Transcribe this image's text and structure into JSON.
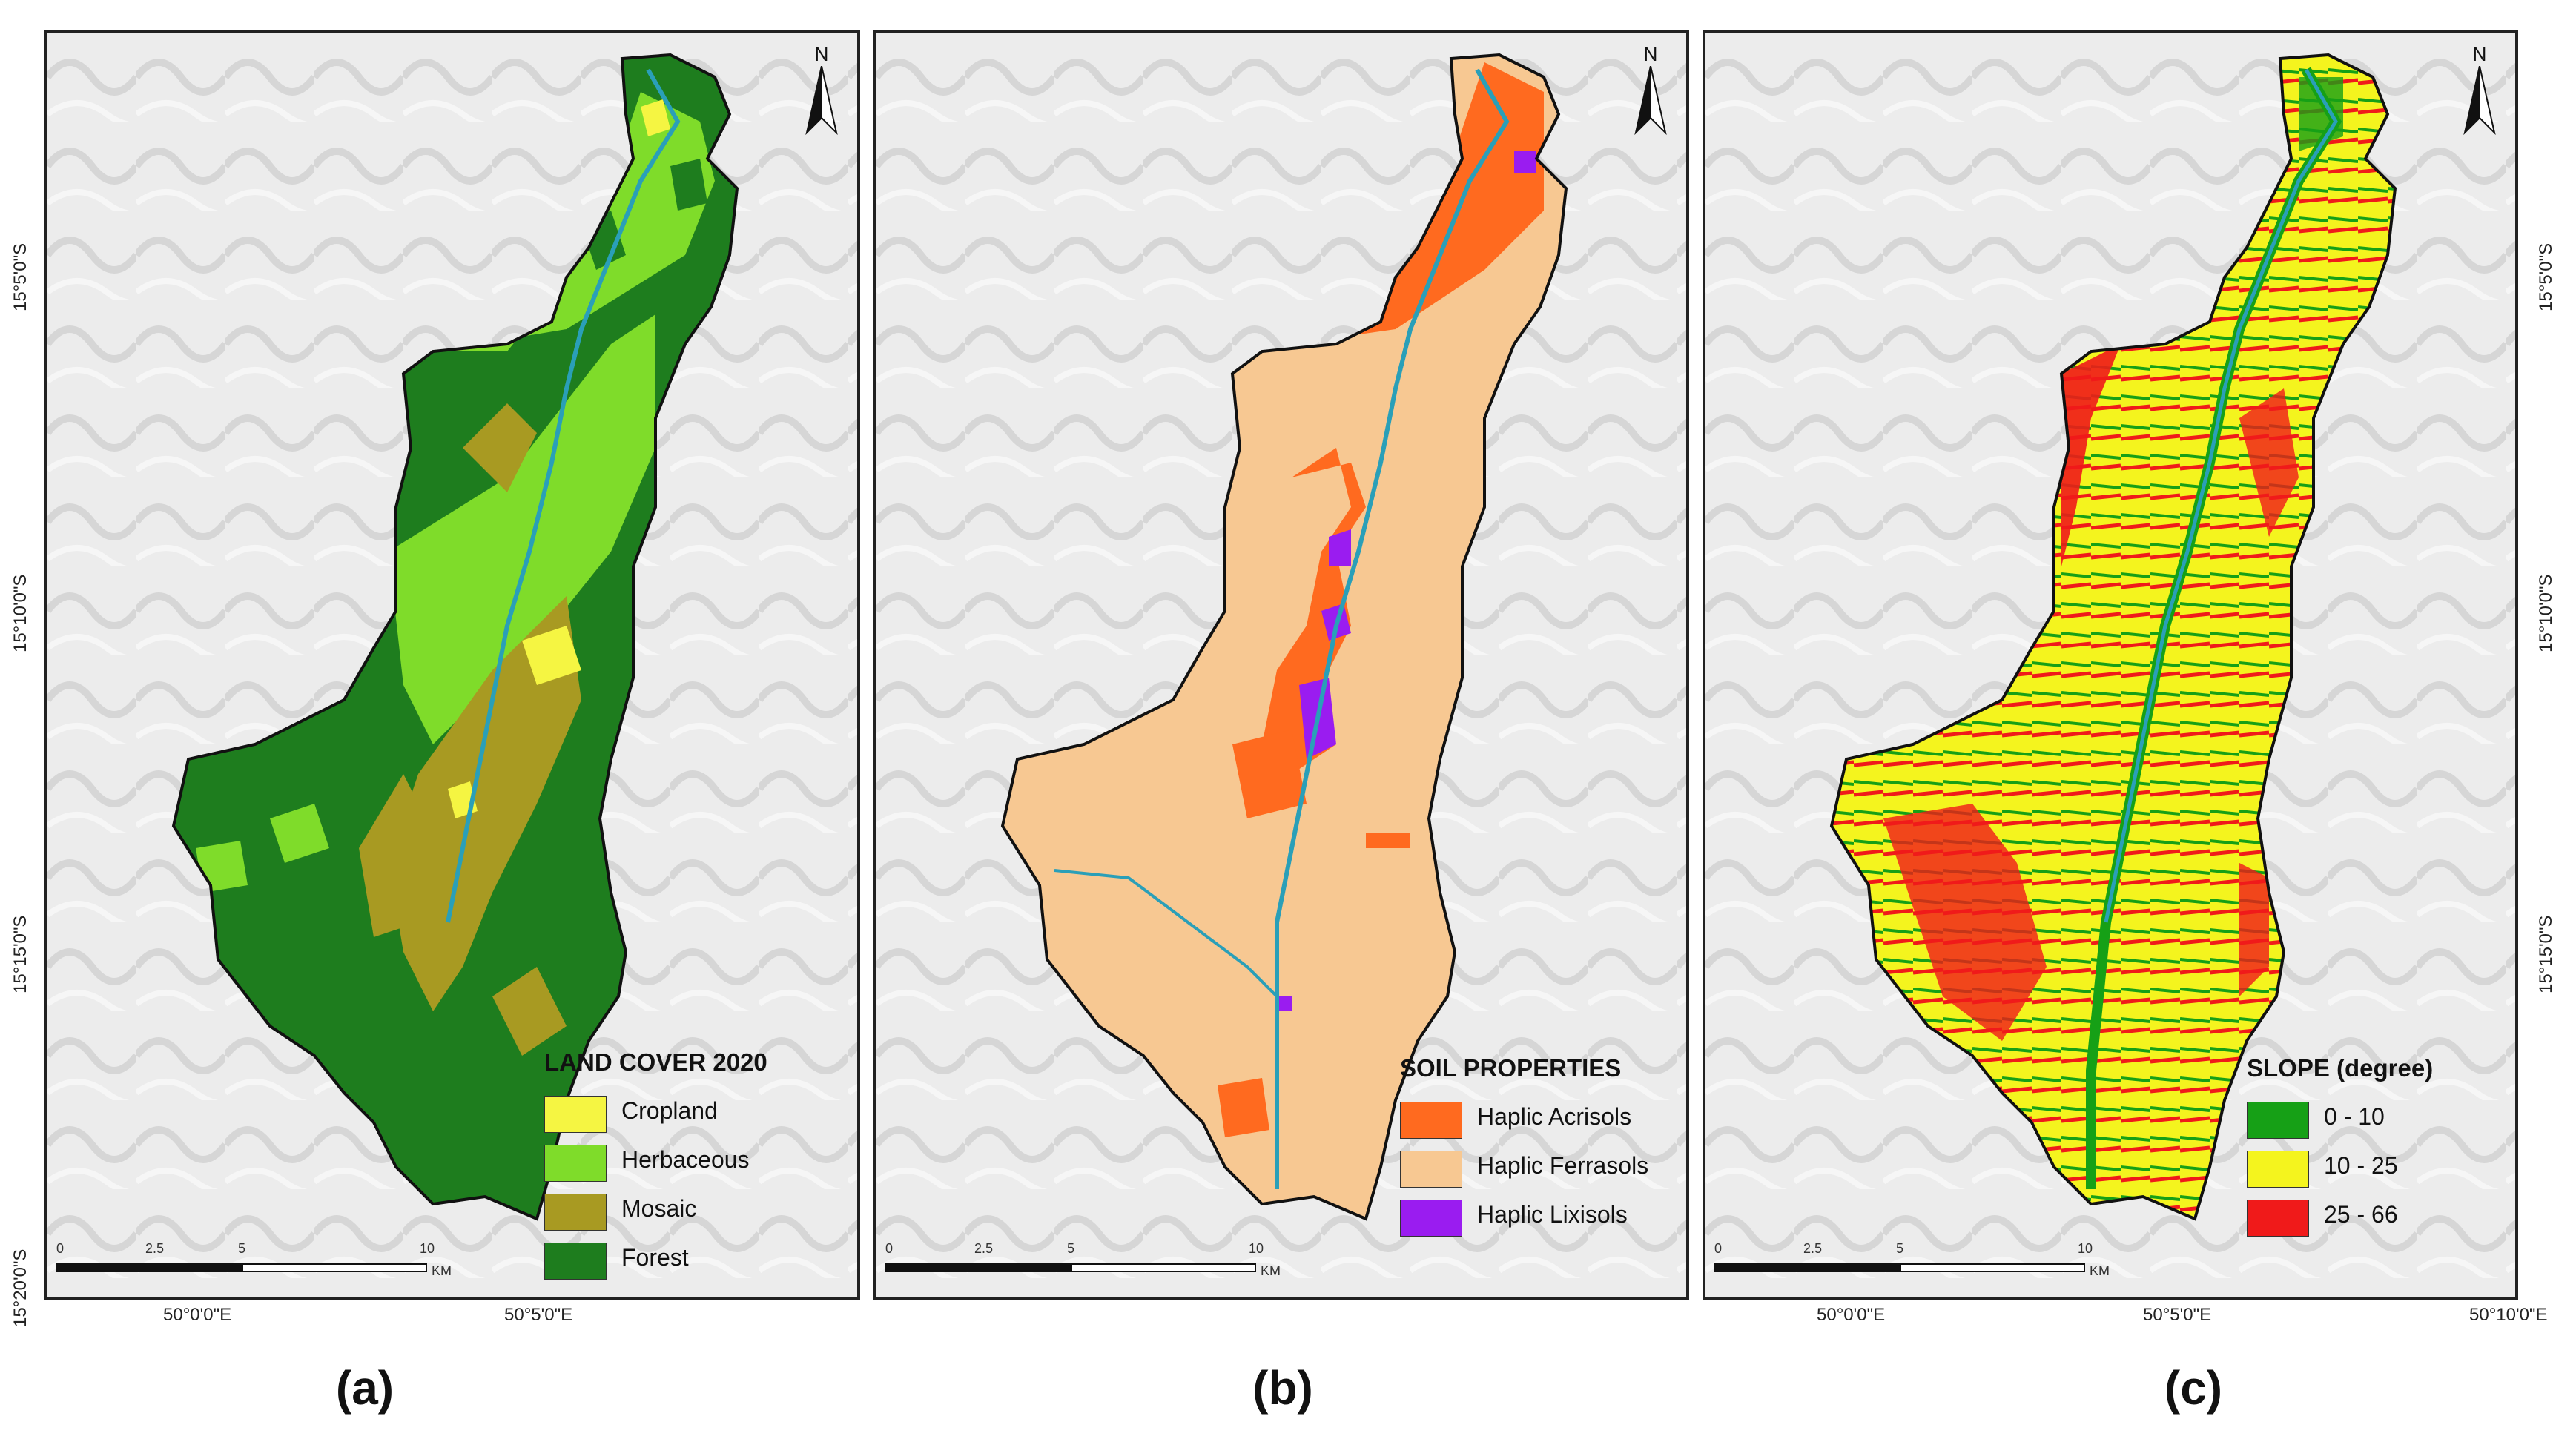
{
  "panels": {
    "a": {
      "caption": "(a)",
      "legend_title": "LAND COVER 2020",
      "legend": [
        {
          "label": "Cropland",
          "color": "#f5f542"
        },
        {
          "label": "Herbaceous",
          "color": "#7fdc2a"
        },
        {
          "label": "Mosaic",
          "color": "#a89a22"
        },
        {
          "label": "Forest",
          "color": "#1e7d1e"
        }
      ],
      "north": "N"
    },
    "b": {
      "caption": "(b)",
      "legend_title": "SOIL PROPERTIES",
      "legend": [
        {
          "label": "Haplic Acrisols",
          "color": "#ff6a1f"
        },
        {
          "label": "Haplic Ferrasols",
          "color": "#f7c892"
        },
        {
          "label": "Haplic Lixisols",
          "color": "#9a1cf0"
        }
      ],
      "north": "N"
    },
    "c": {
      "caption": "(c)",
      "legend_title": "SLOPE (degree)",
      "legend": [
        {
          "label": "0 - 10",
          "color": "#16a016"
        },
        {
          "label": "10 - 25",
          "color": "#f4f41e"
        },
        {
          "label": "25 - 66",
          "color": "#f01a1a"
        }
      ],
      "north": "N"
    }
  },
  "scalebar": {
    "ticks": [
      "0",
      "2.5",
      "5",
      "10"
    ],
    "unit": "KM"
  },
  "coordinates": {
    "lat": [
      "15°5'0\"S",
      "15°10'0\"S",
      "15°15'0\"S",
      "15°20'0\"S"
    ],
    "lon": [
      "50°0'0\"E",
      "50°5'0\"E",
      "50°10'0\"E"
    ]
  },
  "colors": {
    "river": "#2a9fb8",
    "hillshade": "#e6e6e6"
  }
}
